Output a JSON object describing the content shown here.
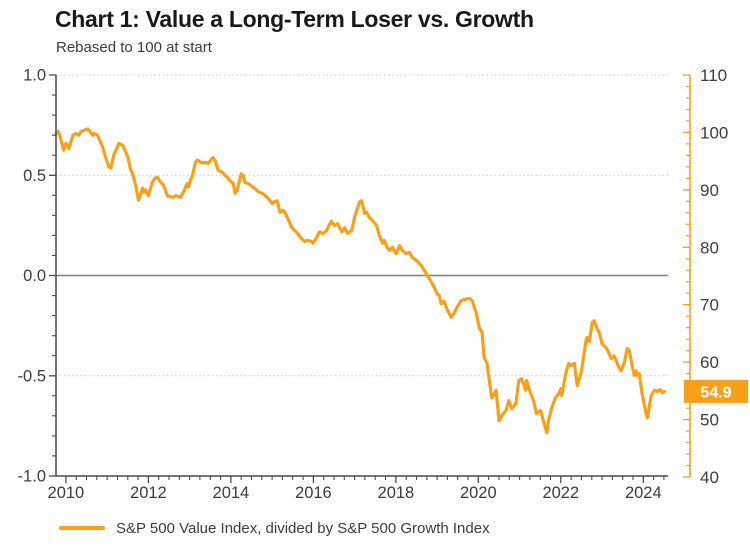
{
  "header": {
    "title": "Chart 1: Value a Long-Term Loser vs. Growth",
    "subtitle": "Rebased to 100 at start"
  },
  "colors": {
    "accent_orange": "#f9a01a",
    "title_text": "#191919",
    "axis_text": "#3c3c3c",
    "spine": "#4a4a4a",
    "zero_line": "#7d7d7d",
    "grid_dotted": "#c9c9c9",
    "callout_text": "#ffffff"
  },
  "chart_data": {
    "type": "line",
    "title": "Chart 1: Value a Long-Term Loser vs. Growth",
    "subtitle": "Rebased to 100 at start",
    "grid": "dotted horizontal at left-axis 1.0, 0.5, -0.5; solid gray line at 0.0",
    "legend": {
      "position": "bottom-left",
      "entries": [
        {
          "label": "S&P 500 Value Index, divided by S&P 500 Growth Index",
          "color": "#f9a01a"
        }
      ]
    },
    "x_axis": {
      "range": [
        2009.76,
        2024.55
      ],
      "ticks": [
        2010,
        2012,
        2014,
        2016,
        2018,
        2020,
        2022,
        2024
      ],
      "minor_step_years": 0.25
    },
    "y_axis_left": {
      "range": [
        -1.0,
        1.0
      ],
      "tick_labels": [
        "1.0",
        "0.5",
        "0.0",
        "-0.5",
        "-1.0"
      ],
      "tick_values": [
        1.0,
        0.5,
        0.0,
        -0.5,
        -1.0
      ],
      "minor_step": 0.1,
      "grid_dotted_at": [
        1.0,
        0.5,
        -0.5
      ],
      "solid_line_at": 0.0
    },
    "y_axis_right": {
      "range": [
        40,
        110
      ],
      "tick_values": [
        110,
        100,
        90,
        80,
        70,
        60,
        50,
        40
      ],
      "minor_step": 2
    },
    "callout": {
      "label": "54.9",
      "value": 54.9,
      "axis": "right"
    },
    "series": [
      {
        "name": "S&P 500 Value Index, divided by S&P 500 Growth Index",
        "color": "#f9a01a",
        "axis": "right",
        "points": [
          [
            2009.76,
            99.8
          ],
          [
            2009.81,
            100.2
          ],
          [
            2009.85,
            99.5
          ],
          [
            2009.9,
            98.1
          ],
          [
            2009.95,
            96.9
          ],
          [
            2010.0,
            98.1
          ],
          [
            2010.07,
            97.2
          ],
          [
            2010.17,
            99.5
          ],
          [
            2010.24,
            99.8
          ],
          [
            2010.31,
            99.5
          ],
          [
            2010.36,
            100.1
          ],
          [
            2010.44,
            100.4
          ],
          [
            2010.53,
            100.6
          ],
          [
            2010.56,
            100.4
          ],
          [
            2010.65,
            99.5
          ],
          [
            2010.68,
            99.8
          ],
          [
            2010.77,
            99.5
          ],
          [
            2010.8,
            98.9
          ],
          [
            2010.89,
            97.5
          ],
          [
            2010.97,
            95.5
          ],
          [
            2011.04,
            94.0
          ],
          [
            2011.09,
            93.8
          ],
          [
            2011.16,
            96.0
          ],
          [
            2011.26,
            97.7
          ],
          [
            2011.28,
            98.1
          ],
          [
            2011.38,
            97.7
          ],
          [
            2011.45,
            96.6
          ],
          [
            2011.5,
            95.7
          ],
          [
            2011.57,
            93.5
          ],
          [
            2011.62,
            92.8
          ],
          [
            2011.69,
            90.8
          ],
          [
            2011.76,
            88.2
          ],
          [
            2011.86,
            90.3
          ],
          [
            2011.89,
            89.6
          ],
          [
            2011.93,
            90.0
          ],
          [
            2012.0,
            89.0
          ],
          [
            2012.1,
            91.4
          ],
          [
            2012.17,
            92.1
          ],
          [
            2012.22,
            92.2
          ],
          [
            2012.29,
            91.4
          ],
          [
            2012.37,
            90.8
          ],
          [
            2012.46,
            89.0
          ],
          [
            2012.53,
            88.8
          ],
          [
            2012.61,
            88.7
          ],
          [
            2012.66,
            89.0
          ],
          [
            2012.73,
            88.8
          ],
          [
            2012.78,
            88.7
          ],
          [
            2012.85,
            89.6
          ],
          [
            2012.94,
            91.1
          ],
          [
            2012.97,
            90.5
          ],
          [
            2013.02,
            91.7
          ],
          [
            2013.07,
            92.5
          ],
          [
            2013.14,
            94.8
          ],
          [
            2013.19,
            95.2
          ],
          [
            2013.26,
            94.8
          ],
          [
            2013.33,
            94.7
          ],
          [
            2013.38,
            94.8
          ],
          [
            2013.45,
            94.6
          ],
          [
            2013.55,
            95.5
          ],
          [
            2013.57,
            95.6
          ],
          [
            2013.62,
            95.1
          ],
          [
            2013.69,
            93.4
          ],
          [
            2013.79,
            93.1
          ],
          [
            2013.86,
            92.5
          ],
          [
            2013.91,
            92.2
          ],
          [
            2013.98,
            91.6
          ],
          [
            2014.06,
            91.1
          ],
          [
            2014.1,
            89.4
          ],
          [
            2014.15,
            89.9
          ],
          [
            2014.25,
            92.8
          ],
          [
            2014.3,
            92.5
          ],
          [
            2014.34,
            91.3
          ],
          [
            2014.42,
            91.1
          ],
          [
            2014.51,
            90.6
          ],
          [
            2014.59,
            90.2
          ],
          [
            2014.66,
            89.7
          ],
          [
            2014.76,
            89.4
          ],
          [
            2014.88,
            88.7
          ],
          [
            2014.95,
            88.1
          ],
          [
            2015.0,
            87.6
          ],
          [
            2015.07,
            88.0
          ],
          [
            2015.12,
            88.1
          ],
          [
            2015.19,
            86.1
          ],
          [
            2015.26,
            86.4
          ],
          [
            2015.31,
            86.1
          ],
          [
            2015.38,
            85.0
          ],
          [
            2015.48,
            83.4
          ],
          [
            2015.55,
            82.9
          ],
          [
            2015.62,
            82.4
          ],
          [
            2015.72,
            81.5
          ],
          [
            2015.79,
            81.0
          ],
          [
            2015.86,
            81.2
          ],
          [
            2015.96,
            81.0
          ],
          [
            2015.99,
            80.7
          ],
          [
            2016.08,
            81.7
          ],
          [
            2016.15,
            82.7
          ],
          [
            2016.23,
            82.4
          ],
          [
            2016.32,
            82.9
          ],
          [
            2016.4,
            84.1
          ],
          [
            2016.44,
            84.5
          ],
          [
            2016.52,
            83.8
          ],
          [
            2016.59,
            84.1
          ],
          [
            2016.69,
            82.7
          ],
          [
            2016.76,
            83.4
          ],
          [
            2016.83,
            82.4
          ],
          [
            2016.93,
            82.9
          ],
          [
            2017.0,
            85.2
          ],
          [
            2017.05,
            86.4
          ],
          [
            2017.12,
            87.9
          ],
          [
            2017.17,
            88.1
          ],
          [
            2017.19,
            87.6
          ],
          [
            2017.24,
            85.9
          ],
          [
            2017.29,
            86.1
          ],
          [
            2017.36,
            85.1
          ],
          [
            2017.43,
            84.7
          ],
          [
            2017.53,
            83.8
          ],
          [
            2017.6,
            82.0
          ],
          [
            2017.68,
            80.7
          ],
          [
            2017.72,
            81.2
          ],
          [
            2017.77,
            80.3
          ],
          [
            2017.84,
            79.4
          ],
          [
            2017.92,
            80.0
          ],
          [
            2017.97,
            79.2
          ],
          [
            2018.01,
            78.9
          ],
          [
            2018.04,
            79.4
          ],
          [
            2018.09,
            80.3
          ],
          [
            2018.16,
            79.4
          ],
          [
            2018.25,
            78.9
          ],
          [
            2018.33,
            79.1
          ],
          [
            2018.4,
            78.2
          ],
          [
            2018.5,
            77.7
          ],
          [
            2018.62,
            76.8
          ],
          [
            2018.69,
            76.0
          ],
          [
            2018.76,
            75.1
          ],
          [
            2018.86,
            74.0
          ],
          [
            2018.93,
            73.0
          ],
          [
            2019.0,
            71.9
          ],
          [
            2019.05,
            71.6
          ],
          [
            2019.1,
            70.2
          ],
          [
            2019.17,
            70.6
          ],
          [
            2019.24,
            69.2
          ],
          [
            2019.34,
            67.8
          ],
          [
            2019.41,
            68.5
          ],
          [
            2019.48,
            69.5
          ],
          [
            2019.58,
            70.7
          ],
          [
            2019.66,
            70.9
          ],
          [
            2019.78,
            71.1
          ],
          [
            2019.85,
            70.7
          ],
          [
            2019.95,
            68.5
          ],
          [
            2020.02,
            66.0
          ],
          [
            2020.09,
            65.2
          ],
          [
            2020.14,
            60.8
          ],
          [
            2020.21,
            59.8
          ],
          [
            2020.31,
            54.5
          ],
          [
            2020.33,
            53.8
          ],
          [
            2020.43,
            55.1
          ],
          [
            2020.5,
            49.8
          ],
          [
            2020.57,
            50.7
          ],
          [
            2020.67,
            51.6
          ],
          [
            2020.74,
            53.3
          ],
          [
            2020.81,
            51.9
          ],
          [
            2020.91,
            52.8
          ],
          [
            2020.98,
            56.8
          ],
          [
            2021.05,
            57.1
          ],
          [
            2021.15,
            55.1
          ],
          [
            2021.17,
            56.8
          ],
          [
            2021.27,
            54.5
          ],
          [
            2021.34,
            53.3
          ],
          [
            2021.41,
            51.0
          ],
          [
            2021.51,
            51.6
          ],
          [
            2021.58,
            49.7
          ],
          [
            2021.66,
            47.7
          ],
          [
            2021.7,
            49.8
          ],
          [
            2021.78,
            52.1
          ],
          [
            2021.87,
            53.8
          ],
          [
            2021.95,
            54.5
          ],
          [
            2022.0,
            55.4
          ],
          [
            2022.02,
            54.2
          ],
          [
            2022.12,
            58.0
          ],
          [
            2022.19,
            59.8
          ],
          [
            2022.24,
            59.4
          ],
          [
            2022.33,
            59.8
          ],
          [
            2022.4,
            55.9
          ],
          [
            2022.5,
            58.4
          ],
          [
            2022.62,
            64.1
          ],
          [
            2022.64,
            64.3
          ],
          [
            2022.69,
            63.6
          ],
          [
            2022.76,
            66.9
          ],
          [
            2022.81,
            67.2
          ],
          [
            2022.88,
            65.8
          ],
          [
            2022.93,
            65.2
          ],
          [
            2023.0,
            63.2
          ],
          [
            2023.1,
            62.5
          ],
          [
            2023.17,
            61.5
          ],
          [
            2023.22,
            60.6
          ],
          [
            2023.29,
            61.1
          ],
          [
            2023.34,
            60.3
          ],
          [
            2023.42,
            58.9
          ],
          [
            2023.46,
            58.5
          ],
          [
            2023.54,
            59.9
          ],
          [
            2023.61,
            62.4
          ],
          [
            2023.66,
            62.0
          ],
          [
            2023.73,
            59.4
          ],
          [
            2023.78,
            57.7
          ],
          [
            2023.83,
            58.5
          ],
          [
            2023.85,
            57.7
          ],
          [
            2023.9,
            58.0
          ],
          [
            2023.97,
            54.5
          ],
          [
            2024.02,
            52.8
          ],
          [
            2024.07,
            51.0
          ],
          [
            2024.1,
            50.3
          ],
          [
            2024.19,
            54.2
          ],
          [
            2024.27,
            55.1
          ],
          [
            2024.34,
            54.9
          ],
          [
            2024.41,
            55.2
          ],
          [
            2024.46,
            54.7
          ],
          [
            2024.51,
            54.9
          ]
        ]
      }
    ]
  }
}
